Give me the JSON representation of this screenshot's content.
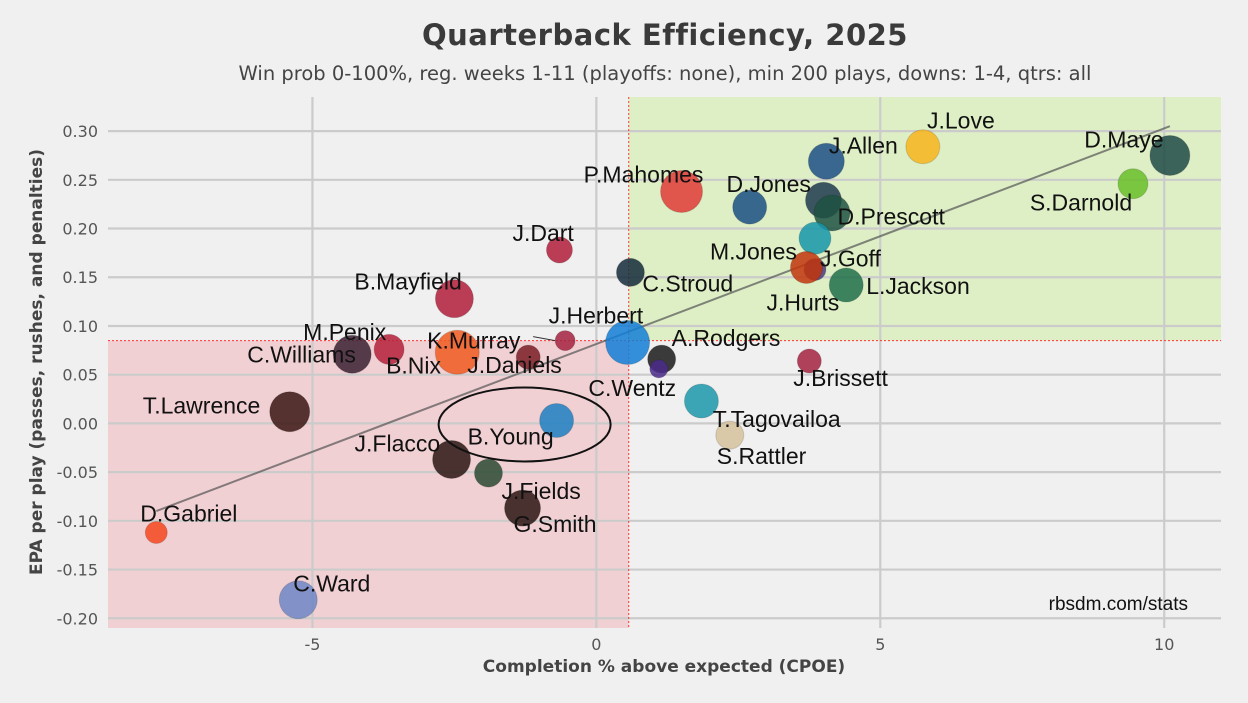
{
  "chart_data": {
    "type": "scatter",
    "title": "Quarterback Efficiency, 2025",
    "subtitle": "Win prob 0-100%, reg. weeks 1-11 (playoffs: none), min 200 plays, downs: 1-4, qtrs: all",
    "xlabel": "Completion % above expected (CPOE)",
    "ylabel": "EPA per play (passes, rushes, and penalties)",
    "xlim": [
      -8.6,
      11.0
    ],
    "ylim": [
      -0.21,
      0.335
    ],
    "x_ticks": [
      -5,
      0,
      5,
      10
    ],
    "y_ticks": [
      -0.2,
      -0.15,
      -0.1,
      -0.05,
      0.0,
      0.05,
      0.1,
      0.15,
      0.2,
      0.25,
      0.3
    ],
    "y_tick_labels": [
      "-0.20",
      "-0.15",
      "-0.10",
      "-0.05",
      "0.00",
      "0.05",
      "0.10",
      "0.15",
      "0.20",
      "0.25",
      "0.30"
    ],
    "x_tick_labels": [
      "-5",
      "0",
      "5",
      "10"
    ],
    "grid": true,
    "mean_cpoe": 0.57,
    "mean_epa": 0.085,
    "trend_line": {
      "x": [
        -7.75,
        10.1
      ],
      "y": [
        -0.09,
        0.305
      ]
    },
    "quadrant_colors": {
      "good": "#d8efb8",
      "bad": "#f2c6c9",
      "mean_line": "#ff3333"
    },
    "source": "rbsdm.com/stats",
    "points": [
      {
        "name": "D.Maye",
        "x": 10.1,
        "y": 0.275,
        "color": "#1f4a45",
        "size": 20
      },
      {
        "name": "S.Darnold",
        "x": 9.45,
        "y": 0.246,
        "color": "#69be28",
        "size": 15
      },
      {
        "name": "J.Love",
        "x": 5.75,
        "y": 0.284,
        "color": "#f7b51c",
        "size": 17
      },
      {
        "name": "J.Allen",
        "x": 4.05,
        "y": 0.269,
        "color": "#1c4f86",
        "size": 18
      },
      {
        "name": "P.Mahomes",
        "x": 1.5,
        "y": 0.238,
        "color": "#e13a36",
        "size": 21
      },
      {
        "name": "D.Jones",
        "x": 2.7,
        "y": 0.222,
        "color": "#1b4f84",
        "size": 17
      },
      {
        "name": "D.Prescott",
        "x": 4.0,
        "y": 0.229,
        "color": "#1e3a4e",
        "size": 18
      },
      {
        "name": "",
        "x": 4.15,
        "y": 0.216,
        "color": "#1e5242",
        "size": 18
      },
      {
        "name": "M.Jones",
        "x": 3.85,
        "y": 0.19,
        "color": "#1596a9",
        "size": 16
      },
      {
        "name": "J.Goff",
        "x": 3.85,
        "y": 0.158,
        "color": "#4c3a7a",
        "size": 11
      },
      {
        "name": "J.Hurts",
        "x": 3.7,
        "y": 0.16,
        "color": "#c2350c",
        "size": 16
      },
      {
        "name": "L.Jackson",
        "x": 4.4,
        "y": 0.142,
        "color": "#1e6f4a",
        "size": 17
      },
      {
        "name": "J.Dart",
        "x": -0.65,
        "y": 0.178,
        "color": "#b01d3a",
        "size": 13
      },
      {
        "name": "C.Stroud",
        "x": 0.6,
        "y": 0.155,
        "color": "#142a3a",
        "size": 14
      },
      {
        "name": "B.Mayfield",
        "x": -2.5,
        "y": 0.128,
        "color": "#b01d3a",
        "size": 19
      },
      {
        "name": "J.Herbert",
        "x": 0.55,
        "y": 0.083,
        "color": "#137ed6",
        "size": 22
      },
      {
        "name": "A.Rodgers",
        "x": 1.15,
        "y": 0.066,
        "color": "#1a1a1a",
        "size": 14
      },
      {
        "name": "",
        "x": 1.1,
        "y": 0.056,
        "color": "#4b2a8a",
        "size": 9
      },
      {
        "name": "K.Murray",
        "x": -0.55,
        "y": 0.085,
        "color": "#a4223f",
        "size": 10
      },
      {
        "name": "J.Daniels",
        "x": -1.2,
        "y": 0.068,
        "color": "#7a1b22",
        "size": 12
      },
      {
        "name": "M.Penix",
        "x": -4.3,
        "y": 0.071,
        "color": "#3a2030",
        "size": 19
      },
      {
        "name": "B.Nix",
        "x": -3.65,
        "y": 0.076,
        "color": "#b52038",
        "size": 15
      },
      {
        "name": "C.Williams",
        "x": -2.45,
        "y": 0.073,
        "color": "#f05a1e",
        "size": 22
      },
      {
        "name": "J.Brissett",
        "x": 3.75,
        "y": 0.064,
        "color": "#a4223f",
        "size": 12
      },
      {
        "name": "C.Wentz",
        "x": 1.85,
        "y": 0.023,
        "color": "#1c98aa",
        "size": 17
      },
      {
        "name": "T.Lawrence",
        "x": -5.4,
        "y": 0.012,
        "color": "#3a1512",
        "size": 20
      },
      {
        "name": "B.Young",
        "x": -0.7,
        "y": 0.003,
        "color": "#1d7fc2",
        "size": 17
      },
      {
        "name": "T.Tagovailoa",
        "x": 2.35,
        "y": -0.012,
        "color": "#d6c29c",
        "size": 14
      },
      {
        "name": "S.Rattler",
        "x": 2.35,
        "y": -0.012,
        "color": "#d6c29c",
        "size": 0
      },
      {
        "name": "J.Flacco",
        "x": -2.55,
        "y": -0.037,
        "color": "#2a1512",
        "size": 19
      },
      {
        "name": "",
        "x": -1.9,
        "y": -0.051,
        "color": "#2a4a33",
        "size": 14
      },
      {
        "name": "J.Fields",
        "x": -1.3,
        "y": -0.087,
        "color": "#2a1512",
        "size": 18
      },
      {
        "name": "G.Smith",
        "x": -1.3,
        "y": -0.087,
        "color": "#2a1512",
        "size": 0
      },
      {
        "name": "D.Gabriel",
        "x": -7.75,
        "y": -0.112,
        "color": "#f4471c",
        "size": 11
      },
      {
        "name": "C.Ward",
        "x": -5.25,
        "y": -0.181,
        "color": "#6f86c4",
        "size": 19
      }
    ],
    "annotations": [
      {
        "type": "ellipse",
        "target": "B.Young"
      }
    ]
  }
}
